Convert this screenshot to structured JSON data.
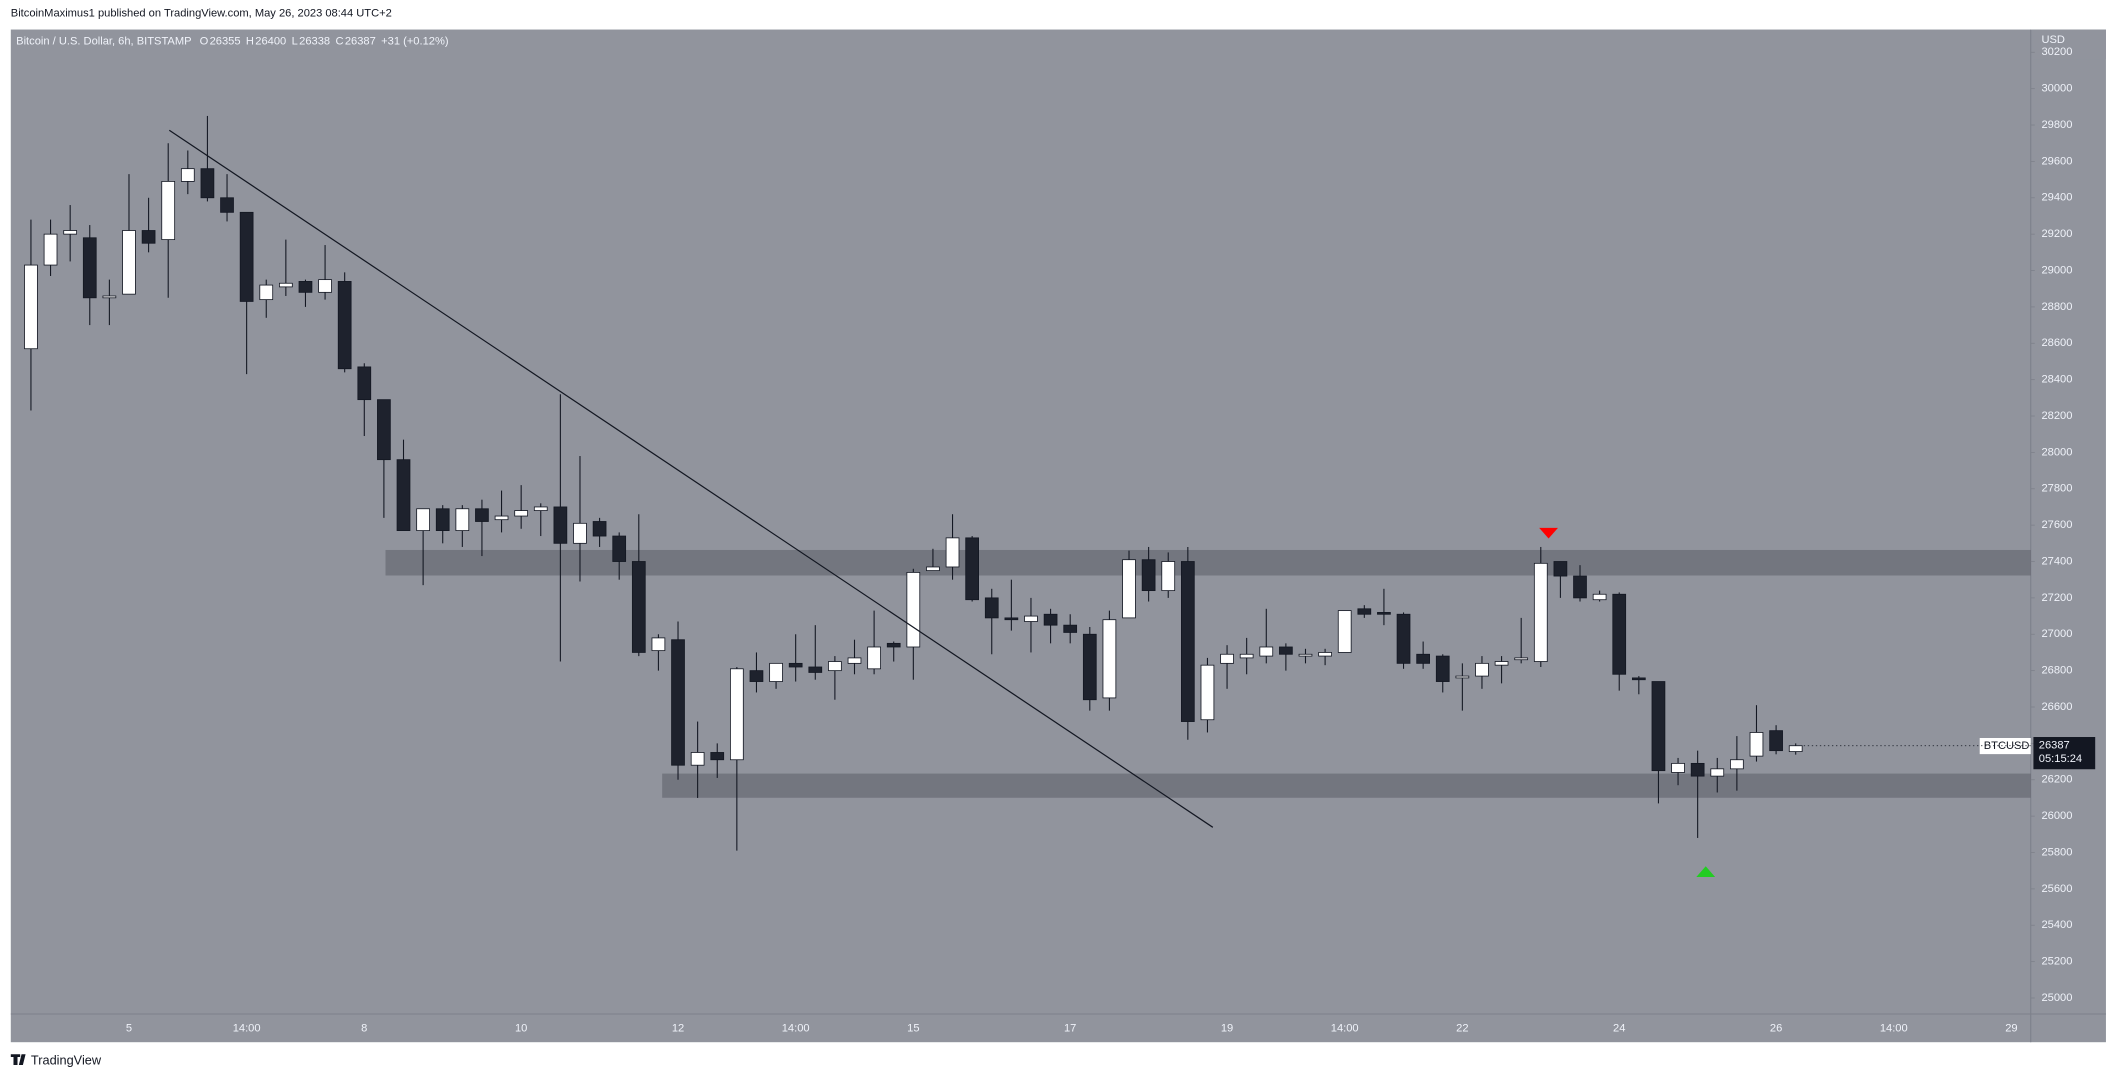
{
  "chart_data": {
    "type": "candlestick",
    "header": "BitcoinMaximus1 published on TradingView.com, May 26, 2023 08:44 UTC+2",
    "title": "Bitcoin / U.S. Dollar, 6h, BITSTAMP",
    "legend_labels": [
      "O",
      "H",
      "L",
      "C"
    ],
    "change": "+31 (+0.12%)",
    "currency": "USD",
    "symbol": "BTCUSD",
    "countdown": "05:15:24",
    "footer": "TradingView",
    "colors": {
      "up": "#ffffff",
      "down": "#1e222d",
      "wick": "#131722",
      "background": "#91949d"
    },
    "categories": [
      null,
      null,
      null,
      null,
      null,
      "5",
      null,
      null,
      null,
      null,
      null,
      "14:00",
      null,
      null,
      null,
      null,
      null,
      "8",
      null,
      null,
      null,
      null,
      null,
      null,
      null,
      "10",
      null,
      null,
      null,
      null,
      null,
      null,
      null,
      "12",
      null,
      null,
      null,
      null,
      null,
      "14:00",
      null,
      null,
      null,
      null,
      null,
      "15",
      null,
      null,
      null,
      null,
      null,
      null,
      null,
      "17",
      null,
      null,
      null,
      null,
      null,
      null,
      null,
      "19",
      null,
      null,
      null,
      null,
      null,
      "14:00",
      null,
      null,
      null,
      null,
      null,
      "22",
      null,
      null,
      null,
      null,
      null,
      null,
      null,
      "24",
      null,
      null,
      null,
      null,
      null,
      null,
      null,
      "26",
      null,
      null,
      null,
      null,
      null,
      "14:00",
      null,
      null,
      null,
      null,
      null,
      "29"
    ],
    "open": [
      28570,
      29030,
      29200,
      29180,
      28850,
      28870,
      29220,
      29170,
      29490,
      29560,
      29400,
      29320,
      28840,
      28910,
      28940,
      28880,
      28940,
      28470,
      28290,
      27960,
      27570,
      27690,
      27570,
      27690,
      27630,
      27650,
      27680,
      27700,
      27500,
      27620,
      27540,
      27400,
      26910,
      26970,
      26280,
      26350,
      26310,
      26800,
      26740,
      26840,
      26820,
      26800,
      26840,
      26810,
      26950,
      26930,
      27350,
      27370,
      27530,
      27200,
      27090,
      27070,
      27110,
      27050,
      27000,
      26650,
      27090,
      27410,
      27240,
      27400,
      26530,
      26840,
      26870,
      26880,
      26930,
      26880,
      26880,
      26900,
      27140,
      27120,
      27110,
      26890,
      26880,
      26760,
      26770,
      26830,
      26860,
      26850,
      27400,
      27320,
      27190,
      27220,
      26760,
      26740,
      26240,
      26290,
      26220,
      26260,
      26330,
      26470,
      26355,
      null,
      null,
      null,
      null,
      null,
      null,
      null,
      null,
      null,
      null,
      null
    ],
    "high": [
      29280,
      29280,
      29360,
      29250,
      28950,
      29530,
      29400,
      29700,
      29660,
      29850,
      29530,
      29320,
      28950,
      29170,
      28950,
      29140,
      28990,
      28490,
      28290,
      28070,
      27690,
      27710,
      27710,
      27740,
      27790,
      27820,
      27720,
      28320,
      27980,
      27640,
      27560,
      27660,
      27000,
      27070,
      26520,
      26400,
      26820,
      26900,
      26840,
      27000,
      27050,
      26880,
      26970,
      27130,
      26960,
      27360,
      27470,
      27660,
      27540,
      27250,
      27300,
      27200,
      27140,
      27110,
      27040,
      27130,
      27460,
      27480,
      27450,
      27480,
      26870,
      26940,
      26980,
      27140,
      26950,
      26920,
      26920,
      27130,
      27160,
      27250,
      27120,
      26960,
      26890,
      26840,
      26880,
      26880,
      27090,
      27480,
      27400,
      27380,
      27240,
      27230,
      26770,
      26740,
      26320,
      26360,
      26320,
      26440,
      26610,
      26500,
      26400,
      null,
      null,
      null,
      null,
      null,
      null,
      null,
      null,
      null,
      null,
      null
    ],
    "low": [
      28230,
      28970,
      29050,
      28700,
      28700,
      28870,
      29100,
      28850,
      29420,
      29380,
      29270,
      28430,
      28740,
      28860,
      28800,
      28840,
      28440,
      28090,
      27640,
      27570,
      27270,
      27500,
      27480,
      27430,
      27560,
      27580,
      27540,
      26850,
      27290,
      27480,
      27300,
      26880,
      26800,
      26200,
      26100,
      26210,
      25810,
      26680,
      26700,
      26740,
      26750,
      26640,
      26780,
      26780,
      26850,
      26750,
      27350,
      27300,
      27180,
      26890,
      27020,
      26900,
      26950,
      26950,
      26580,
      26580,
      27090,
      27180,
      27200,
      26420,
      26460,
      26700,
      26780,
      26840,
      26800,
      26840,
      26830,
      26900,
      27090,
      27050,
      26810,
      26810,
      26680,
      26580,
      26700,
      26730,
      26840,
      26820,
      27200,
      27180,
      27180,
      26690,
      26670,
      26070,
      26170,
      25880,
      26130,
      26140,
      26300,
      26340,
      26338,
      null,
      null,
      null,
      null,
      null,
      null,
      null,
      null,
      null,
      null,
      null
    ],
    "close": [
      29030,
      29200,
      29220,
      28850,
      28860,
      29220,
      29150,
      29490,
      29560,
      29400,
      29320,
      28830,
      28920,
      28930,
      28880,
      28950,
      28460,
      28290,
      27960,
      27570,
      27690,
      27570,
      27690,
      27620,
      27650,
      27680,
      27700,
      27500,
      27610,
      27540,
      27400,
      26900,
      26980,
      26280,
      26350,
      26310,
      26810,
      26740,
      26840,
      26820,
      26790,
      26850,
      26870,
      26930,
      26930,
      27340,
      27370,
      27530,
      27190,
      27090,
      27080,
      27100,
      27050,
      27010,
      26640,
      27080,
      27410,
      27240,
      27400,
      26520,
      26830,
      26890,
      26890,
      26930,
      26890,
      26890,
      26900,
      27130,
      27110,
      27110,
      26840,
      26840,
      26740,
      26770,
      26840,
      26850,
      26870,
      27390,
      27320,
      27200,
      27220,
      26780,
      26750,
      26250,
      26290,
      26220,
      26260,
      26310,
      26460,
      26360,
      26387,
      null,
      null,
      null,
      null,
      null,
      null,
      null,
      null,
      null,
      null,
      null
    ],
    "ylim": [
      24912,
      30325
    ],
    "yticks": [
      25000,
      25200,
      25400,
      25600,
      25800,
      26000,
      26200,
      26400,
      26600,
      26800,
      27000,
      27200,
      27400,
      27600,
      27800,
      28000,
      28200,
      28400,
      28600,
      28800,
      29000,
      29200,
      29400,
      29600,
      29800,
      30000,
      30200
    ]
  }
}
